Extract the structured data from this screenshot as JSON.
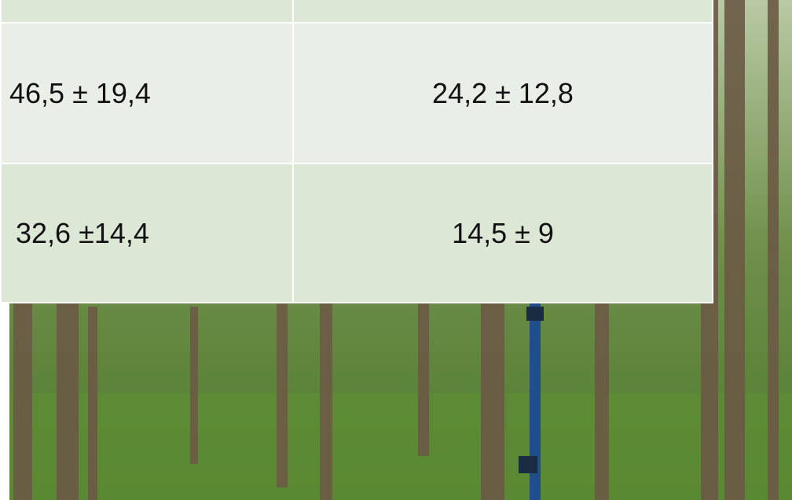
{
  "table": {
    "rows": [
      [
        "46,5 ± 19,4",
        "24,2 ± 12,8"
      ],
      [
        "32,6 ±14,4",
        "14,5 ± 9"
      ]
    ]
  }
}
